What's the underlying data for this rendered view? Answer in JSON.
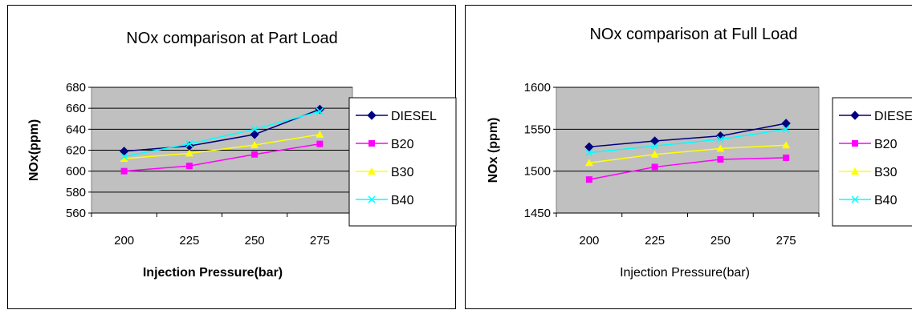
{
  "chart_data": [
    {
      "type": "line",
      "title": "NOx comparison at Part Load",
      "xlabel": "Injection Pressure(bar)",
      "ylabel": "NOx(ppm)",
      "categories": [
        "200",
        "225",
        "250",
        "275"
      ],
      "ylim": [
        560,
        680
      ],
      "yticks": [
        "560",
        "580",
        "600",
        "620",
        "640",
        "660",
        "680"
      ],
      "grid": true,
      "legend": "right",
      "series": [
        {
          "name": "DIESEL",
          "values": [
            619,
            624,
            635,
            659
          ],
          "color": "#000080",
          "marker": "diamond"
        },
        {
          "name": "B20",
          "values": [
            600,
            605,
            616,
            626
          ],
          "color": "#ff00ff",
          "marker": "square"
        },
        {
          "name": "B30",
          "values": [
            612,
            617,
            625,
            635
          ],
          "color": "#ffff00",
          "marker": "triangle"
        },
        {
          "name": "B40",
          "values": [
            614,
            626,
            640,
            657
          ],
          "color": "#00ffff",
          "marker": "x"
        }
      ]
    },
    {
      "type": "line",
      "title": "NOx comparison at Full Load",
      "xlabel": "Injection Pressure(bar)",
      "ylabel": "NOx (ppm)",
      "categories": [
        "200",
        "225",
        "250",
        "275"
      ],
      "ylim": [
        1450,
        1600
      ],
      "yticks": [
        "1450",
        "1500",
        "1550",
        "1600"
      ],
      "grid": true,
      "legend": "right",
      "series": [
        {
          "name": "DIESEL",
          "values": [
            1529,
            1536,
            1542,
            1557
          ],
          "color": "#000080",
          "marker": "diamond"
        },
        {
          "name": "B20",
          "values": [
            1490,
            1505,
            1514,
            1516
          ],
          "color": "#ff00ff",
          "marker": "square"
        },
        {
          "name": "B30",
          "values": [
            1510,
            1520,
            1527,
            1531
          ],
          "color": "#ffff00",
          "marker": "triangle"
        },
        {
          "name": "B40",
          "values": [
            1522,
            1530,
            1538,
            1550
          ],
          "color": "#00ffff",
          "marker": "x"
        }
      ]
    }
  ]
}
